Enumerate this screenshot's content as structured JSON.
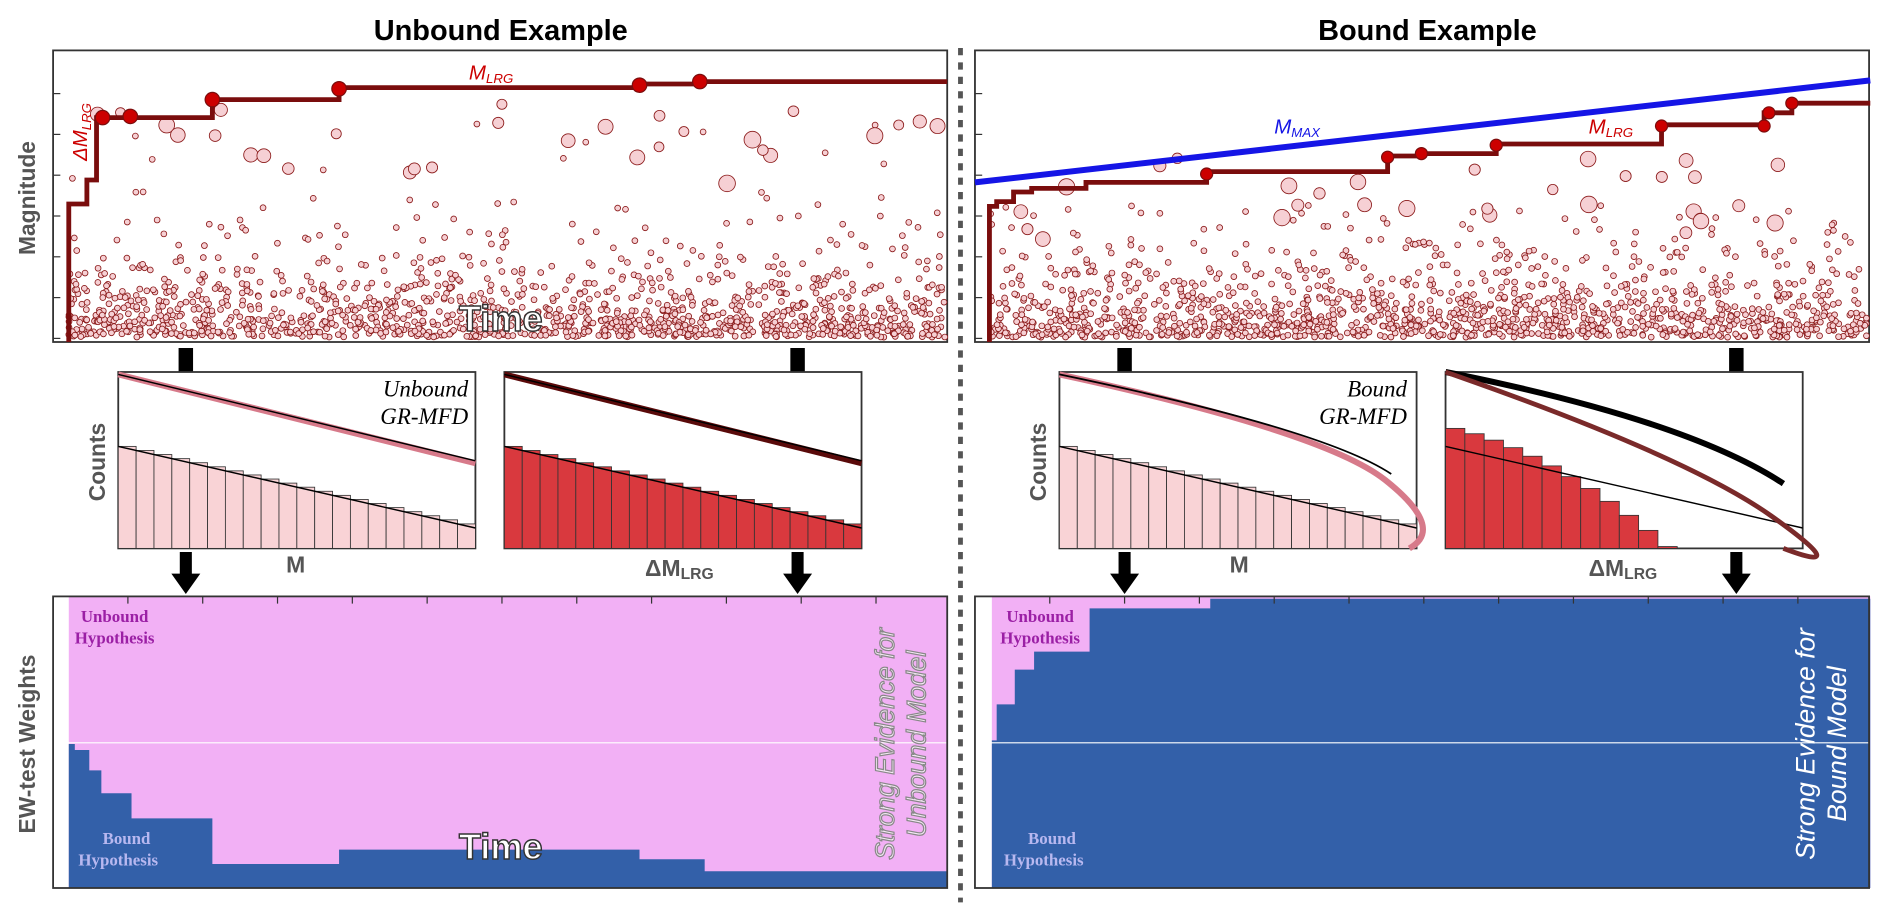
{
  "panels": [
    {
      "title": "Unbound Example",
      "top": {
        "y_label": "Magnitude",
        "x_label": "Time",
        "line_label": {
          "main": "M",
          "sub": "LRG"
        },
        "step_label": {
          "main": "ΔM",
          "sub": "LRG"
        }
      },
      "middle": {
        "y_label": "Counts",
        "left_label": [
          "Unbound",
          "GR-MFD"
        ],
        "left_x_label": "M",
        "right_x_label": {
          "main": "ΔM",
          "sub": "LRG"
        }
      },
      "bottom": {
        "y_label": "EW-test Weights",
        "x_label": "Time",
        "upper": [
          "Unbound",
          "Hypothesis"
        ],
        "lower": [
          "Bound",
          "Hypothesis"
        ],
        "evidence": [
          "Strong Evidence for",
          "Unbound Model"
        ]
      }
    },
    {
      "title": "Bound Example",
      "top": {
        "line_label": {
          "main": "M",
          "sub": "LRG"
        },
        "limit_label": {
          "main": "M",
          "sub": "MAX"
        }
      },
      "middle": {
        "y_label": "Counts",
        "left_label": [
          "Bound",
          "GR-MFD"
        ],
        "left_x_label": "M",
        "right_x_label": {
          "main": "ΔM",
          "sub": "LRG"
        }
      },
      "bottom": {
        "upper": [
          "Unbound",
          "Hypothesis"
        ],
        "lower": [
          "Bound",
          "Hypothesis"
        ],
        "evidence": [
          "Strong Evidence for",
          "Bound Model"
        ]
      }
    }
  ]
}
